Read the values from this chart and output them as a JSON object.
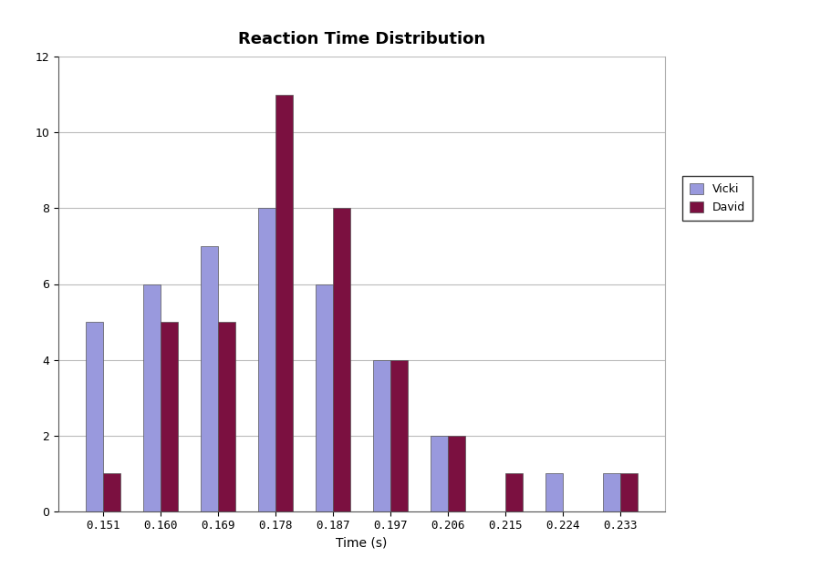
{
  "title": "Reaction Time Distribution",
  "xlabel": "Time (s)",
  "ylabel": "",
  "categories": [
    0.151,
    0.16,
    0.169,
    0.178,
    0.187,
    0.197,
    0.206,
    0.215,
    0.224,
    0.233
  ],
  "vicki_values": [
    5,
    6,
    7,
    8,
    6,
    4,
    2,
    0,
    1,
    1
  ],
  "david_values": [
    1,
    5,
    5,
    11,
    8,
    4,
    2,
    1,
    0,
    1
  ],
  "vicki_color": "#9999dd",
  "david_color": "#7b1040",
  "ylim": [
    0,
    12
  ],
  "yticks": [
    0,
    2,
    4,
    6,
    8,
    10,
    12
  ],
  "bar_width": 0.3,
  "title_fontsize": 13,
  "tick_fontsize": 9,
  "legend_labels": [
    "Vicki",
    "David"
  ],
  "background_color": "#ffffff",
  "grid_color": "#bbbbbb"
}
